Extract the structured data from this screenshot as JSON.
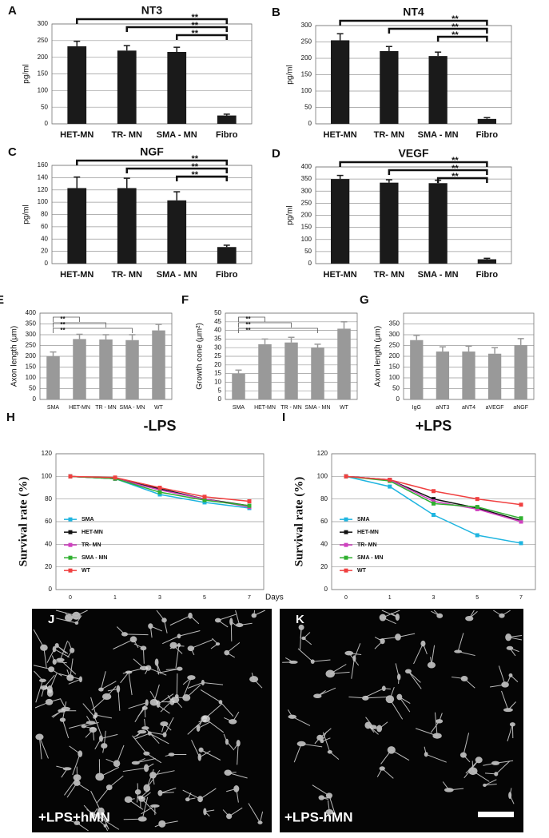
{
  "chart_data": [
    {
      "type": "bar",
      "letter": "A",
      "title": "NT3",
      "ylabel": "pg/ml",
      "color": "#1a1a1a",
      "categories": [
        "HET-MN",
        "TR- MN",
        "SMA - MN",
        "Fibro"
      ],
      "values": [
        233,
        220,
        216,
        25
      ],
      "errors": [
        15,
        15,
        14,
        4
      ],
      "ylim": [
        0,
        300
      ],
      "yticks": [
        0,
        50,
        100,
        150,
        200,
        250,
        300
      ],
      "grid": true,
      "annotations": [
        "**",
        "**",
        "**"
      ]
    },
    {
      "type": "bar",
      "letter": "B",
      "title": "NT4",
      "ylabel": "pg/ml",
      "color": "#1a1a1a",
      "categories": [
        "HET-MN",
        "TR- MN",
        "SMA - MN",
        "Fibro"
      ],
      "values": [
        255,
        222,
        207,
        15
      ],
      "errors": [
        20,
        14,
        12,
        4
      ],
      "ylim": [
        0,
        300
      ],
      "yticks": [
        0,
        50,
        100,
        150,
        200,
        250,
        300
      ],
      "grid": true,
      "annotations": [
        "**",
        "**",
        "**"
      ]
    },
    {
      "type": "bar",
      "letter": "C",
      "title": "NGF",
      "ylabel": "pg/ml",
      "color": "#1a1a1a",
      "categories": [
        "HET-MN",
        "TR- MN",
        "SMA - MN",
        "Fibro"
      ],
      "values": [
        123,
        123,
        103,
        27
      ],
      "errors": [
        18,
        16,
        14,
        3
      ],
      "ylim": [
        0,
        160
      ],
      "yticks": [
        0,
        20,
        40,
        60,
        80,
        100,
        120,
        140,
        160
      ],
      "grid": true,
      "annotations": [
        "**",
        "**",
        "**"
      ]
    },
    {
      "type": "bar",
      "letter": "D",
      "title": "VEGF",
      "ylabel": "pg/ml",
      "color": "#1a1a1a",
      "categories": [
        "HET-MN",
        "TR- MN",
        "SMA - MN",
        "Fibro"
      ],
      "values": [
        350,
        335,
        333,
        18
      ],
      "errors": [
        15,
        12,
        12,
        4
      ],
      "ylim": [
        0,
        400
      ],
      "yticks": [
        0,
        50,
        100,
        150,
        200,
        250,
        300,
        350,
        400
      ],
      "grid": true,
      "annotations": [
        "**",
        "**",
        "**"
      ]
    },
    {
      "type": "bar",
      "letter": "E",
      "ylabel": "Axon length (μm)",
      "color": "#999999",
      "categories": [
        "SMA",
        "HET-MN",
        "TR - MN",
        "SMA - MN",
        "WT"
      ],
      "values": [
        200,
        280,
        278,
        275,
        320
      ],
      "errors": [
        20,
        22,
        22,
        25,
        28
      ],
      "ylim": [
        0,
        400
      ],
      "yticks": [
        0,
        50,
        100,
        150,
        200,
        250,
        300,
        350,
        400
      ],
      "grid": true,
      "annotations": [
        "**",
        "**",
        "**"
      ]
    },
    {
      "type": "bar",
      "letter": "F",
      "ylabel": "Growth cone (μm²)",
      "color": "#999999",
      "categories": [
        "SMA",
        "HET-MN",
        "TR - MN",
        "SMA - MN",
        "WT"
      ],
      "values": [
        15,
        32,
        33,
        30,
        41
      ],
      "errors": [
        2,
        3,
        3,
        2,
        4
      ],
      "ylim": [
        0,
        50
      ],
      "yticks": [
        0,
        5,
        10,
        15,
        20,
        25,
        30,
        35,
        40,
        45,
        50
      ],
      "grid": true,
      "annotations": [
        "**",
        "**",
        "**"
      ]
    },
    {
      "type": "bar",
      "letter": "G",
      "ylabel": "Axon length (μm)",
      "color": "#999999",
      "categories": [
        "IgG",
        "aNT3",
        "aNT4",
        "aVEGF",
        "aNGF"
      ],
      "values": [
        275,
        222,
        222,
        212,
        252
      ],
      "errors": [
        22,
        22,
        25,
        28,
        30
      ],
      "ylim": [
        0,
        400
      ],
      "yticks": [
        0,
        50,
        100,
        150,
        200,
        250,
        300,
        350
      ],
      "grid": true,
      "annotations": []
    },
    {
      "type": "line",
      "letter": "H",
      "title": "-LPS",
      "ylabel": "Survival rate (%)",
      "xlabel": "Days",
      "categories": [
        "0",
        "1",
        "3",
        "5",
        "7"
      ],
      "ylim": [
        0,
        120
      ],
      "yticks": [
        0,
        20,
        40,
        60,
        80,
        100,
        120
      ],
      "grid": true,
      "series": [
        {
          "name": "SMA",
          "color": "#1fb5e0",
          "values": [
            100,
            98,
            84,
            77,
            72
          ]
        },
        {
          "name": "HET-MN",
          "color": "#111111",
          "values": [
            100,
            98,
            89,
            80,
            74
          ]
        },
        {
          "name": "TR- MN",
          "color": "#d040c0",
          "values": [
            100,
            98,
            88,
            80,
            73
          ]
        },
        {
          "name": "SMA - MN",
          "color": "#30b030",
          "values": [
            100,
            98,
            86,
            79,
            74
          ]
        },
        {
          "name": "WT",
          "color": "#f04040",
          "values": [
            100,
            99,
            90,
            82,
            78
          ]
        }
      ]
    },
    {
      "type": "line",
      "letter": "I",
      "title": "+LPS",
      "ylabel": "Survival rate (%)",
      "categories": [
        "0",
        "1",
        "3",
        "5",
        "7"
      ],
      "ylim": [
        0,
        120
      ],
      "yticks": [
        0,
        20,
        40,
        60,
        80,
        100,
        120
      ],
      "grid": true,
      "series": [
        {
          "name": "SMA",
          "color": "#1fb5e0",
          "values": [
            100,
            91,
            66,
            48,
            41
          ]
        },
        {
          "name": "HET-MN",
          "color": "#111111",
          "values": [
            100,
            97,
            80,
            72,
            61
          ]
        },
        {
          "name": "TR- MN",
          "color": "#d040c0",
          "values": [
            100,
            97,
            78,
            71,
            60
          ]
        },
        {
          "name": "SMA - MN",
          "color": "#30b030",
          "values": [
            100,
            96,
            76,
            73,
            63
          ]
        },
        {
          "name": "WT",
          "color": "#f04040",
          "values": [
            100,
            97,
            87,
            80,
            75
          ]
        }
      ]
    }
  ],
  "images": [
    {
      "letter": "J",
      "label": "+LPS+hMN"
    },
    {
      "letter": "K",
      "label": "+LPS-hMN"
    }
  ]
}
